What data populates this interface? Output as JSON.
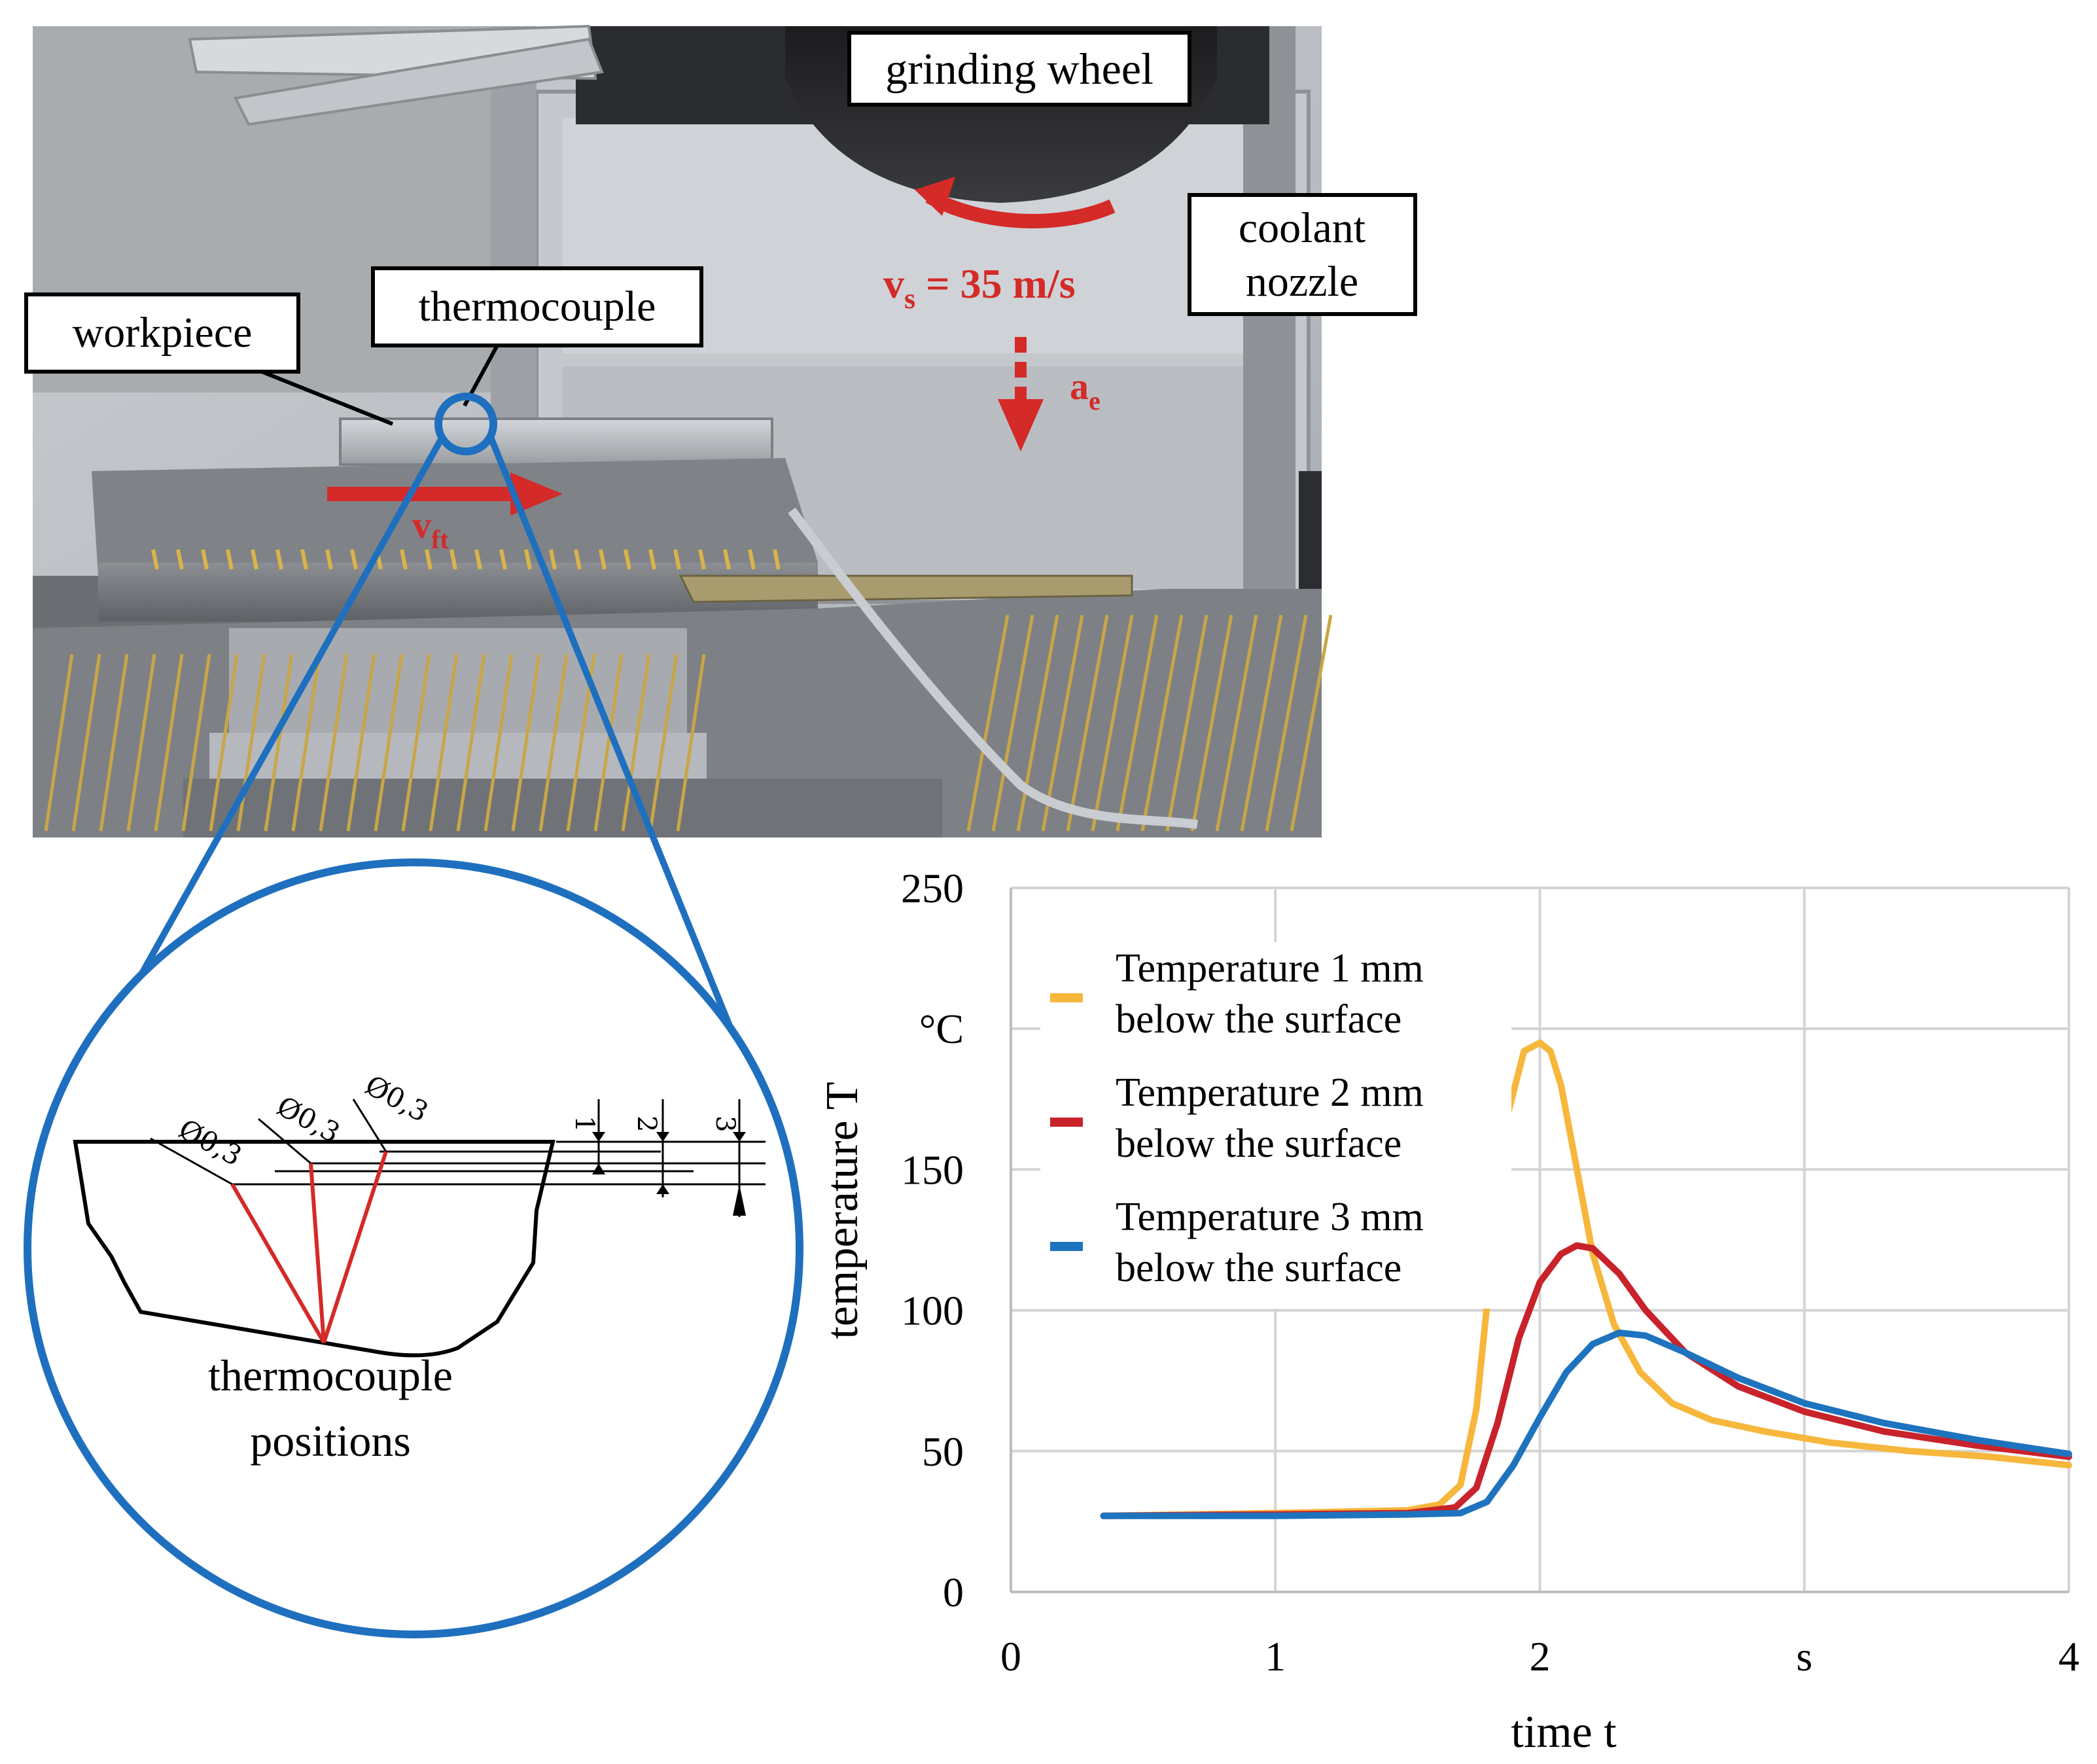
{
  "photo_labels": {
    "grinding_wheel": "grinding wheel",
    "coolant_nozzle_line1": "coolant",
    "coolant_nozzle_line2": "nozzle",
    "workpiece": "workpiece",
    "thermocouple": "thermocouple",
    "vs_symbol": "v",
    "vs_subscript": "s",
    "vs_value": " = 35 m/s",
    "ae_symbol": "a",
    "ae_subscript": "e",
    "vft_symbol": "v",
    "vft_subscript": "ft"
  },
  "detail": {
    "caption_line1": "thermocouple",
    "caption_line2": "positions",
    "diameter_labels": [
      "Ø0,3",
      "Ø0,3",
      "Ø0,3"
    ],
    "depth_labels": [
      "1",
      "2",
      "3"
    ]
  },
  "colors": {
    "accent_red": "#d42a28",
    "zoom_blue": "#1f6fbf",
    "series1": "#f6b73c",
    "series2": "#c8222b",
    "series3": "#1e73be"
  },
  "chart_data": {
    "type": "line",
    "xlabel": "time t",
    "ylabel": "temperature T",
    "x_unit": "s",
    "y_unit": "°C",
    "xlim": [
      0,
      4
    ],
    "ylim": [
      0,
      250
    ],
    "x_ticks": [
      "0",
      "1",
      "2",
      "s",
      "4"
    ],
    "y_ticks": [
      "0",
      "50",
      "100",
      "150",
      "°C",
      "250"
    ],
    "grid": true,
    "legend_position": "top-left",
    "series": [
      {
        "name_line1": "Temperature 1 mm",
        "name_line2": "below the surface",
        "x": [
          0.35,
          1.0,
          1.5,
          1.62,
          1.7,
          1.76,
          1.82,
          1.88,
          1.94,
          2.0,
          2.04,
          2.08,
          2.13,
          2.2,
          2.28,
          2.38,
          2.5,
          2.65,
          2.85,
          3.1,
          3.4,
          3.7,
          4.0
        ],
        "y": [
          27,
          28,
          29,
          31,
          38,
          65,
          120,
          170,
          192,
          195,
          192,
          180,
          155,
          120,
          95,
          78,
          67,
          61,
          57,
          53,
          50,
          48,
          45
        ]
      },
      {
        "name_line1": "Temperature 2 mm",
        "name_line2": "below the surface",
        "x": [
          0.35,
          1.0,
          1.5,
          1.68,
          1.76,
          1.84,
          1.92,
          2.0,
          2.08,
          2.14,
          2.2,
          2.3,
          2.4,
          2.55,
          2.75,
          3.0,
          3.3,
          3.65,
          4.0
        ],
        "y": [
          27,
          27.5,
          28,
          30,
          37,
          60,
          90,
          110,
          120,
          123,
          122,
          113,
          100,
          85,
          73,
          64,
          57,
          52,
          48
        ]
      },
      {
        "name_line1": "Temperature 3 mm",
        "name_line2": "below the surface",
        "x": [
          0.35,
          1.0,
          1.5,
          1.7,
          1.8,
          1.9,
          2.0,
          2.1,
          2.2,
          2.3,
          2.4,
          2.55,
          2.75,
          3.0,
          3.3,
          3.65,
          4.0
        ],
        "y": [
          27,
          27,
          27.5,
          28,
          32,
          45,
          62,
          78,
          88,
          92,
          91,
          85,
          76,
          67,
          60,
          54,
          49
        ]
      }
    ]
  }
}
